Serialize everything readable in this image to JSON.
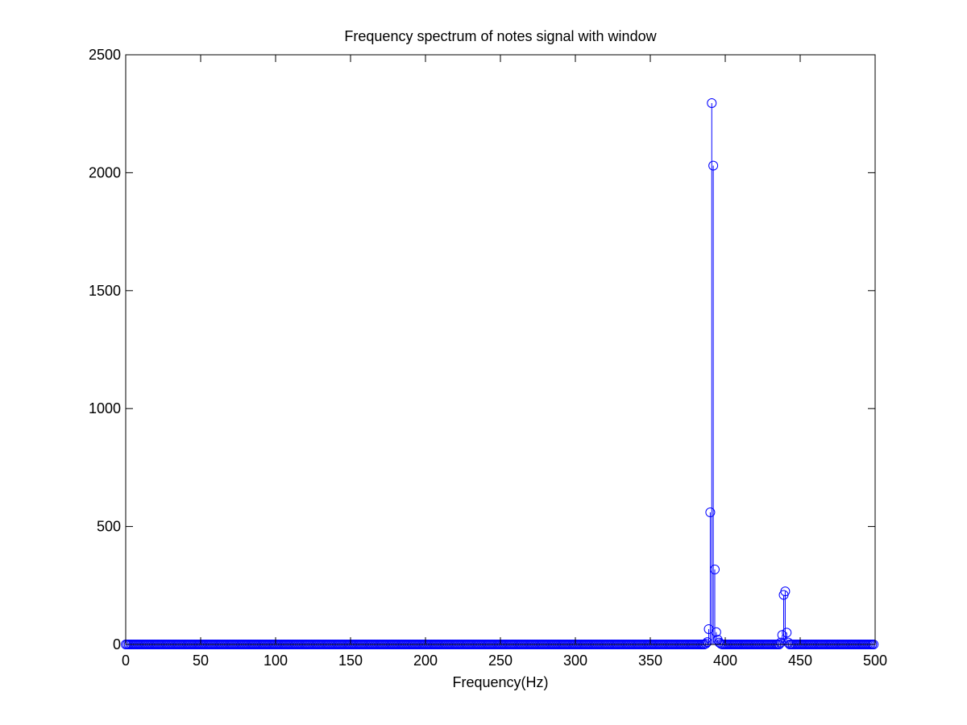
{
  "chart_data": {
    "type": "stem",
    "title": "Frequency spectrum of notes signal with window",
    "xlabel": "Frequency(Hz)",
    "ylabel": "",
    "xlim": [
      0,
      500
    ],
    "ylim": [
      0,
      2500
    ],
    "xticks": [
      "0",
      "50",
      "100",
      "150",
      "200",
      "250",
      "300",
      "350",
      "400",
      "450",
      "500"
    ],
    "yticks": [
      "0",
      "500",
      "1000",
      "1500",
      "2000",
      "2500"
    ],
    "grid": false,
    "legend": "none",
    "baseline_x_range": [
      0,
      499
    ],
    "baseline_step": 1,
    "baseline_value": 0,
    "peaks": [
      {
        "x": 387,
        "y": 3
      },
      {
        "x": 388,
        "y": 10
      },
      {
        "x": 389,
        "y": 65
      },
      {
        "x": 390,
        "y": 560
      },
      {
        "x": 391,
        "y": 2295
      },
      {
        "x": 392,
        "y": 2030
      },
      {
        "x": 393,
        "y": 318
      },
      {
        "x": 394,
        "y": 52
      },
      {
        "x": 395,
        "y": 20
      },
      {
        "x": 396,
        "y": 8
      },
      {
        "x": 397,
        "y": 3
      },
      {
        "x": 437,
        "y": 8
      },
      {
        "x": 438,
        "y": 40
      },
      {
        "x": 439,
        "y": 210
      },
      {
        "x": 440,
        "y": 225
      },
      {
        "x": 441,
        "y": 50
      },
      {
        "x": 442,
        "y": 8
      }
    ],
    "colors": {
      "series": "#0000ff",
      "axes": "#000000"
    }
  }
}
